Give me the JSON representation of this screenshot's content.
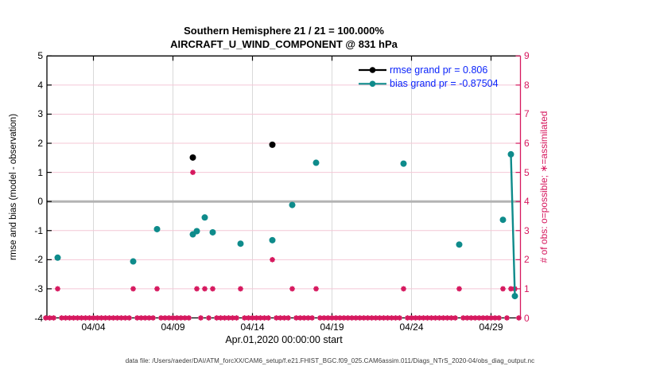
{
  "title": {
    "line1": "Southern Hemisphere 21 / 21 = 100.000%",
    "line2": "AIRCRAFT_U_WIND_COMPONENT @ 831 hPa"
  },
  "legend": [
    {
      "label": "rmse grand pr = 0.806",
      "color_key": "black"
    },
    {
      "label": "bias grand pr = -0.87504",
      "color_key": "teal"
    }
  ],
  "caption": "data file: /Users/raeder/DAI/ATM_forcXX/CAM6_setup/f.e21.FHIST_BGC.f09_025.CAM6assim.011/Diags_NTrS_2020-04/obs_diag_output.nc",
  "colors": {
    "black": "#000000",
    "teal": "#0e8b8b",
    "crimson": "#d6185e",
    "legend_text_blue": "#0b24fb",
    "zero_line_gray": "#b3b3b3",
    "h_gridline_pink": "#f4c7d6",
    "v_gridline_gray": "#d9d9d9",
    "caption_gray": "#3a3a3a"
  },
  "chart_data": {
    "type": "scatter",
    "x_axis": {
      "title": "Apr.01,2020 00:00:00 start",
      "tick_labels": [
        "04/04",
        "04/09",
        "04/14",
        "04/19",
        "04/24",
        "04/29"
      ],
      "tick_days_from_start": [
        3,
        8,
        13,
        18,
        23,
        28
      ],
      "range_days": [
        0,
        29.8
      ],
      "bin_spacing_days": 0.25
    },
    "y_left": {
      "title": "rmse and bias (model - observation)",
      "range": [
        -4,
        5
      ],
      "ticks": [
        -4,
        -3,
        -2,
        -1,
        0,
        1,
        2,
        3,
        4,
        5
      ],
      "zero_reference_line": 0
    },
    "y_right": {
      "title": "# of obs: o=possible; ∗=assimilated",
      "range": [
        0,
        9
      ],
      "ticks": [
        0,
        1,
        2,
        3,
        4,
        5,
        6,
        7,
        8,
        9
      ]
    },
    "series": [
      {
        "name": "rmse",
        "axis": "left",
        "marker": "filled-circle",
        "color_key": "black",
        "points": [
          [
            9.25,
            1.51
          ],
          [
            14.25,
            1.95
          ]
        ]
      },
      {
        "name": "bias",
        "axis": "left",
        "marker": "filled-circle",
        "color_key": "teal",
        "points": [
          [
            0.75,
            -1.93
          ],
          [
            5.5,
            -2.06
          ],
          [
            7.0,
            -0.95
          ],
          [
            9.25,
            -1.13
          ],
          [
            9.5,
            -1.02
          ],
          [
            10.0,
            -0.55
          ],
          [
            10.5,
            -1.06
          ],
          [
            12.25,
            -1.45
          ],
          [
            14.25,
            -1.33
          ],
          [
            15.5,
            -0.12
          ],
          [
            17.0,
            1.33
          ],
          [
            22.5,
            1.3
          ],
          [
            26.0,
            -1.48
          ],
          [
            28.75,
            -0.63
          ],
          [
            29.25,
            1.62
          ],
          [
            29.5,
            -3.25
          ]
        ]
      },
      {
        "name": "obs_count",
        "axis": "right",
        "marker": "asterisk-circle",
        "color_key": "crimson",
        "points": [
          [
            0.75,
            1
          ],
          [
            5.5,
            1
          ],
          [
            7.0,
            1
          ],
          [
            9.25,
            5
          ],
          [
            9.5,
            1
          ],
          [
            10.0,
            1
          ],
          [
            10.5,
            1
          ],
          [
            12.25,
            1
          ],
          [
            14.25,
            2
          ],
          [
            15.5,
            1
          ],
          [
            17.0,
            1
          ],
          [
            22.5,
            1
          ],
          [
            26.0,
            1
          ],
          [
            28.75,
            1
          ],
          [
            29.25,
            1
          ],
          [
            29.5,
            1
          ]
        ]
      }
    ],
    "zero_count_bins": {
      "start_day": 0,
      "end_day": 29.75,
      "spacing_days": 0.25,
      "value": 0
    },
    "connect_consecutive_within_days": 0.26
  }
}
